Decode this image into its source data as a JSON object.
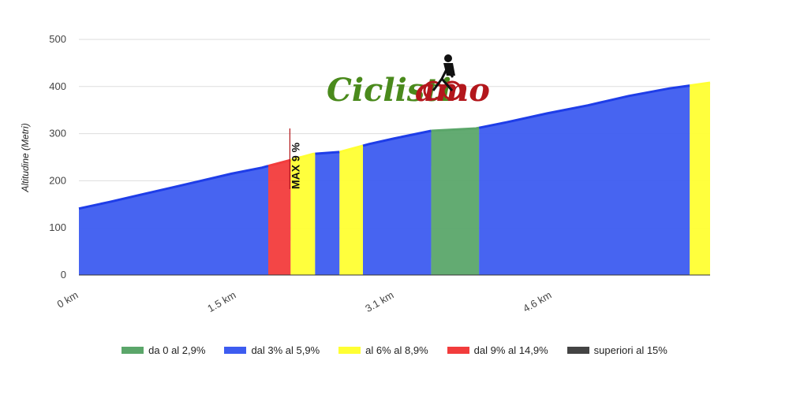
{
  "logo": {
    "text_main": "Ciclisti",
    "text_accent": "amo",
    "main_color": "#4a8a1c",
    "accent_color": "#b3171c"
  },
  "chart_data": {
    "type": "area",
    "ylabel": "Altitudine (Metri)",
    "xlabel": "",
    "ylim": [
      0,
      500
    ],
    "xlim": [
      0,
      6.2
    ],
    "y_ticks": [
      "0",
      "100",
      "200",
      "300",
      "400",
      "500"
    ],
    "y_tick_values": [
      0,
      100,
      200,
      300,
      400,
      500
    ],
    "x_ticks": [
      "0 km",
      "1.5 km",
      "3.1 km",
      "4.6 km"
    ],
    "x_tick_values": [
      0,
      1.55,
      3.1,
      4.65
    ],
    "grid": true,
    "legend_position": "bottom",
    "profile": [
      {
        "x": 0.0,
        "y": 141
      },
      {
        "x": 0.3,
        "y": 155
      },
      {
        "x": 0.6,
        "y": 170
      },
      {
        "x": 0.9,
        "y": 185
      },
      {
        "x": 1.2,
        "y": 200
      },
      {
        "x": 1.5,
        "y": 215
      },
      {
        "x": 1.8,
        "y": 228
      },
      {
        "x": 2.08,
        "y": 244
      },
      {
        "x": 2.3,
        "y": 257
      },
      {
        "x": 2.56,
        "y": 261
      },
      {
        "x": 2.85,
        "y": 278
      },
      {
        "x": 3.1,
        "y": 290
      },
      {
        "x": 3.46,
        "y": 306
      },
      {
        "x": 3.9,
        "y": 311
      },
      {
        "x": 4.2,
        "y": 324
      },
      {
        "x": 4.6,
        "y": 343
      },
      {
        "x": 5.0,
        "y": 360
      },
      {
        "x": 5.4,
        "y": 380
      },
      {
        "x": 5.8,
        "y": 396
      },
      {
        "x": 6.2,
        "y": 408
      }
    ],
    "segments": [
      {
        "from": 0.0,
        "to": 1.86,
        "category": "dal 3% al 5,9%"
      },
      {
        "from": 1.86,
        "to": 2.08,
        "category": "dal 9% al 14,9%"
      },
      {
        "from": 2.08,
        "to": 2.32,
        "category": "al 6% al 8,9%"
      },
      {
        "from": 2.32,
        "to": 2.56,
        "category": "dal 3% al 5,9%"
      },
      {
        "from": 2.56,
        "to": 2.79,
        "category": "al 6% al 8,9%"
      },
      {
        "from": 2.79,
        "to": 3.46,
        "category": "dal 3% al 5,9%"
      },
      {
        "from": 3.46,
        "to": 3.93,
        "category": "da 0 al 2,9%"
      },
      {
        "from": 3.93,
        "to": 6.0,
        "category": "dal 3% al 5,9%"
      },
      {
        "from": 6.0,
        "to": 6.2,
        "category": "al 6% al 8,9%"
      }
    ],
    "annotation": {
      "label": "MAX 9 %",
      "x": 2.08
    },
    "legend": [
      {
        "label": "da 0 al 2,9%",
        "color": "#5ba66a"
      },
      {
        "label": "dal 3% al 5,9%",
        "color": "#3d5cf0"
      },
      {
        "label": "al 6% al 8,9%",
        "color": "#ffff33"
      },
      {
        "label": "dal 9% al 14,9%",
        "color": "#f23c3c"
      },
      {
        "label": "superiori al 15%",
        "color": "#444444"
      }
    ],
    "colors": {
      "grid": "#dddddd",
      "outline_blue": "#1e3de8",
      "axis": "#333333"
    }
  }
}
